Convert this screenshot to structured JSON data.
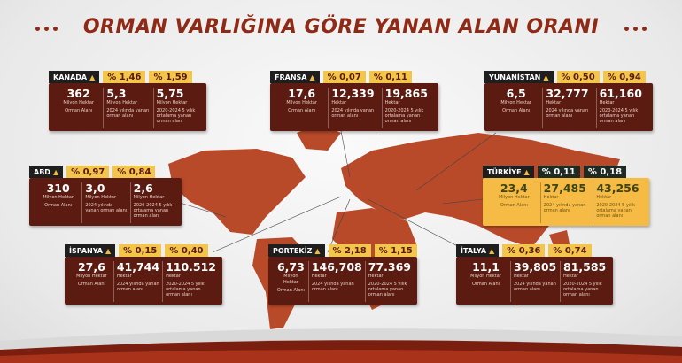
{
  "title": "ORMAN VARLIĞINA GÖRE YANAN ALAN ORANI",
  "colors": {
    "card": "#5b1b10",
    "highlight": "#f6bb44",
    "map": "#b84a2a",
    "accent": "#8e2a16",
    "tag": "#f3c64b"
  },
  "countries": [
    {
      "name": "KANADA",
      "pct2024": "% 1,46",
      "pctAvg": "% 1,59",
      "forest": "362",
      "forest_unit": "Milyon Hektar",
      "forest_caption": "Orman Alanı",
      "burned2024": "5,3",
      "burned2024_unit": "Milyon Hektar",
      "burned2024_caption": "2024 yılında yanan orman alanı",
      "burnedAvg": "5,75",
      "burnedAvg_unit": "Milyon Hektar",
      "burnedAvg_caption": "2020-2024 5 yılık ortalama yanan orman alanı"
    },
    {
      "name": "FRANSA",
      "pct2024": "% 0,07",
      "pctAvg": "% 0,11",
      "forest": "17,6",
      "forest_unit": "Milyon Hektar",
      "forest_caption": "Orman Alanı",
      "burned2024": "12,339",
      "burned2024_unit": "Hektar",
      "burned2024_caption": "2024 yılında yanan orman alanı",
      "burnedAvg": "19,865",
      "burnedAvg_unit": "Hektar",
      "burnedAvg_caption": "2020-2024 5 yılık ortalama yanan orman alanı"
    },
    {
      "name": "YUNANİSTAN",
      "pct2024": "% 0,50",
      "pctAvg": "% 0,94",
      "forest": "6,5",
      "forest_unit": "Milyon Hektar",
      "forest_caption": "Orman Alanı",
      "burned2024": "32,777",
      "burned2024_unit": "Hektar",
      "burned2024_caption": "2024 yılında yanan orman alanı",
      "burnedAvg": "61,160",
      "burnedAvg_unit": "Hektar",
      "burnedAvg_caption": "2020-2024 5 yılık ortalama yanan orman alanı"
    },
    {
      "name": "ABD",
      "pct2024": "% 0,97",
      "pctAvg": "% 0,84",
      "forest": "310",
      "forest_unit": "Milyon Hektar",
      "forest_caption": "Orman Alanı",
      "burned2024": "3,0",
      "burned2024_unit": "Milyon Hektar",
      "burned2024_caption": "2024 yılında yanan orman alanı",
      "burnedAvg": "2,6",
      "burnedAvg_unit": "Milyon Hektar",
      "burnedAvg_caption": "2020-2024 5 yılık ortalama yanan orman alanı"
    },
    {
      "name": "TÜRKİYE",
      "pct2024": "% 0,11",
      "pctAvg": "% 0,18",
      "forest": "23,4",
      "forest_unit": "Milyon Hektar",
      "forest_caption": "Orman Alanı",
      "burned2024": "27,485",
      "burned2024_unit": "Hektar",
      "burned2024_caption": "2024 yılında yanan orman alanı",
      "burnedAvg": "43,256",
      "burnedAvg_unit": "Hektar",
      "burnedAvg_caption": "2020-2024 5 yılık ortalama yanan orman alanı"
    },
    {
      "name": "İSPANYA",
      "pct2024": "% 0,15",
      "pctAvg": "% 0,40",
      "forest": "27,6",
      "forest_unit": "Milyon Hektar",
      "forest_caption": "Orman Alanı",
      "burned2024": "41,744",
      "burned2024_unit": "Hektar",
      "burned2024_caption": "2024 yılında yanan orman alanı",
      "burnedAvg": "110.512",
      "burnedAvg_unit": "Hektar",
      "burnedAvg_caption": "2020-2024 5 yılık ortalama yanan orman alanı"
    },
    {
      "name": "PORTEKİZ",
      "pct2024": "% 2,18",
      "pctAvg": "% 1,15",
      "forest": "6,73",
      "forest_unit": "Milyon Hektar",
      "forest_caption": "Orman Alanı",
      "burned2024": "146,708",
      "burned2024_unit": "Hektar",
      "burned2024_caption": "2024 yılında yanan orman alanı",
      "burnedAvg": "77.369",
      "burnedAvg_unit": "Hektar",
      "burnedAvg_caption": "2020-2024 5 yılık ortalama yanan orman alanı"
    },
    {
      "name": "İTALYA",
      "pct2024": "% 0,36",
      "pctAvg": "% 0,74",
      "forest": "11,1",
      "forest_unit": "Milyon Hektar",
      "forest_caption": "Orman Alanı",
      "burned2024": "39,805",
      "burned2024_unit": "Hektar",
      "burned2024_caption": "2024 yılında yanan orman alanı",
      "burnedAvg": "81,585",
      "burnedAvg_unit": "Hektar",
      "burnedAvg_caption": "2020-2024 5 yılık ortalama yanan orman alanı"
    }
  ]
}
